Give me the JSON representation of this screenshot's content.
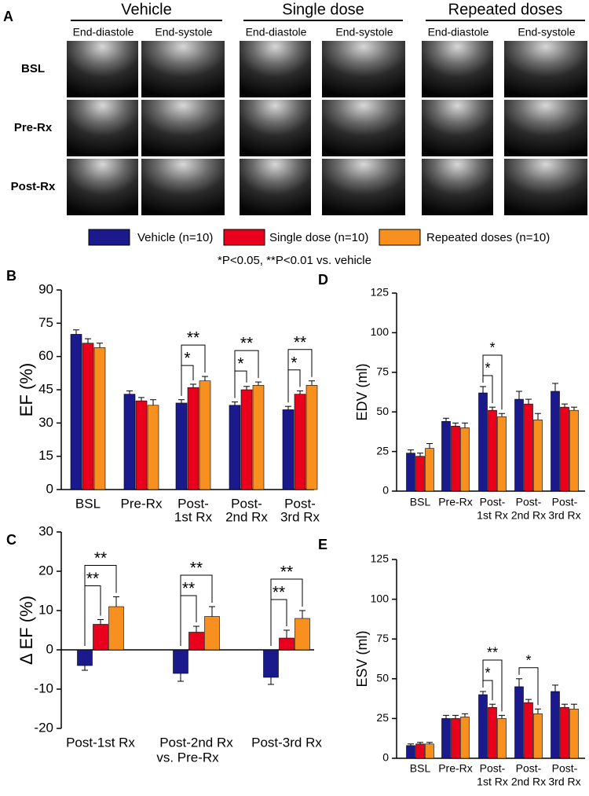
{
  "figure_a": {
    "panel": "A",
    "groups": [
      {
        "title": "Vehicle",
        "phases": [
          "End-diastole",
          "End-systole"
        ]
      },
      {
        "title": "Single dose",
        "phases": [
          "End-diastole",
          "End-systole"
        ]
      },
      {
        "title": "Repeated doses",
        "phases": [
          "End-diastole",
          "End-systole"
        ]
      }
    ],
    "rows": [
      "BSL",
      "Pre-Rx",
      "Post-Rx"
    ]
  },
  "significance_note": "*P<0.05, **P<0.01 vs. vehicle",
  "chart_data": [
    {
      "type": "bar",
      "panel": "B",
      "ylabel": "EF (%)",
      "categories": [
        [
          "BSL"
        ],
        [
          "Pre-Rx"
        ],
        [
          "Post-",
          "1st Rx"
        ],
        [
          "Post-",
          "2nd Rx"
        ],
        [
          "Post-",
          "3rd Rx"
        ]
      ],
      "series": [
        {
          "name": "Vehicle (n=10)",
          "color": "#1a1a8c",
          "values": [
            70,
            43,
            39,
            38,
            36
          ],
          "errors": [
            2,
            1.5,
            1.5,
            1.5,
            1.5
          ]
        },
        {
          "name": "Single dose (n=10)",
          "color": "#e8001c",
          "values": [
            66,
            40,
            46,
            45,
            43
          ],
          "errors": [
            2,
            1.5,
            1.5,
            1.5,
            1.5
          ]
        },
        {
          "name": "Repeated doses (n=10)",
          "color": "#f7901e",
          "values": [
            64,
            38,
            49,
            47,
            47
          ],
          "errors": [
            2,
            2.5,
            2,
            1.5,
            2
          ]
        }
      ],
      "ylim": [
        0,
        90
      ],
      "yticks": [
        0,
        15,
        30,
        45,
        60,
        75,
        90
      ],
      "grid": false,
      "annotations": [
        {
          "category": 2,
          "series": [
            0,
            1
          ],
          "label": "*"
        },
        {
          "category": 2,
          "series": [
            0,
            2
          ],
          "label": "**"
        },
        {
          "category": 3,
          "series": [
            0,
            1
          ],
          "label": "*"
        },
        {
          "category": 3,
          "series": [
            0,
            2
          ],
          "label": "**"
        },
        {
          "category": 4,
          "series": [
            0,
            1
          ],
          "label": "*"
        },
        {
          "category": 4,
          "series": [
            0,
            2
          ],
          "label": "**"
        }
      ]
    },
    {
      "type": "bar",
      "panel": "C",
      "ylabel": "Δ EF (%)",
      "xlabel": "vs. Pre-Rx",
      "categories": [
        [
          "Post-1st Rx"
        ],
        [
          "Post-2nd Rx"
        ],
        [
          "Post-3rd Rx"
        ]
      ],
      "series": [
        {
          "color": "#1a1a8c",
          "values": [
            -4,
            -6,
            -7
          ],
          "errors": [
            1.2,
            2,
            1.8
          ]
        },
        {
          "color": "#e8001c",
          "values": [
            6.5,
            4.5,
            3
          ],
          "errors": [
            1.2,
            1.5,
            2
          ]
        },
        {
          "color": "#f7901e",
          "values": [
            11,
            8.5,
            8
          ],
          "errors": [
            2.5,
            2.5,
            2
          ]
        }
      ],
      "ylim": [
        -20,
        30
      ],
      "yticks": [
        -20,
        -10,
        0,
        10,
        20,
        30
      ],
      "grid": false,
      "annotations": [
        {
          "category": 0,
          "series": [
            0,
            1
          ],
          "label": "**"
        },
        {
          "category": 0,
          "series": [
            0,
            2
          ],
          "label": "**"
        },
        {
          "category": 1,
          "series": [
            0,
            1
          ],
          "label": "**"
        },
        {
          "category": 1,
          "series": [
            0,
            2
          ],
          "label": "**"
        },
        {
          "category": 2,
          "series": [
            0,
            1
          ],
          "label": "**"
        },
        {
          "category": 2,
          "series": [
            0,
            2
          ],
          "label": "**"
        }
      ]
    },
    {
      "type": "bar",
      "panel": "D",
      "ylabel": "EDV (ml)",
      "categories": [
        [
          "BSL"
        ],
        [
          "Pre-Rx"
        ],
        [
          "Post-",
          "1st Rx"
        ],
        [
          "Post-",
          "2nd Rx"
        ],
        [
          "Post-",
          "3rd Rx"
        ]
      ],
      "series": [
        {
          "color": "#1a1a8c",
          "values": [
            24,
            44,
            62,
            58,
            63
          ],
          "errors": [
            2,
            2,
            4,
            5,
            5
          ]
        },
        {
          "color": "#e8001c",
          "values": [
            22,
            41,
            51,
            55,
            53
          ],
          "errors": [
            2,
            2,
            2,
            3,
            2
          ]
        },
        {
          "color": "#f7901e",
          "values": [
            27,
            40,
            47,
            45,
            51
          ],
          "errors": [
            3,
            3,
            2,
            4,
            2
          ]
        }
      ],
      "ylim": [
        0,
        125
      ],
      "yticks": [
        0,
        25,
        50,
        75,
        100,
        125
      ],
      "grid": false,
      "annotations": [
        {
          "category": 2,
          "series": [
            0,
            1
          ],
          "label": "*"
        },
        {
          "category": 2,
          "series": [
            0,
            2
          ],
          "label": "*"
        }
      ]
    },
    {
      "type": "bar",
      "panel": "E",
      "ylabel": "ESV (ml)",
      "categories": [
        [
          "BSL"
        ],
        [
          "Pre-Rx"
        ],
        [
          "Post-",
          "1st Rx"
        ],
        [
          "Post-",
          "2nd Rx"
        ],
        [
          "Post-",
          "3rd Rx"
        ]
      ],
      "series": [
        {
          "color": "#1a1a8c",
          "values": [
            8,
            25,
            40,
            45,
            42
          ],
          "errors": [
            1,
            2,
            2,
            5,
            4
          ]
        },
        {
          "color": "#e8001c",
          "values": [
            9,
            25,
            32,
            35,
            32
          ],
          "errors": [
            1,
            2,
            2,
            2,
            2
          ]
        },
        {
          "color": "#f7901e",
          "values": [
            9,
            26,
            25,
            28,
            31
          ],
          "errors": [
            1,
            2,
            2,
            3,
            3
          ]
        }
      ],
      "ylim": [
        0,
        125
      ],
      "yticks": [
        0,
        25,
        50,
        75,
        100,
        125
      ],
      "grid": false,
      "annotations": [
        {
          "category": 2,
          "series": [
            0,
            1
          ],
          "label": "*"
        },
        {
          "category": 2,
          "series": [
            0,
            2
          ],
          "label": "**"
        },
        {
          "category": 3,
          "series": [
            0,
            2
          ],
          "label": "*"
        }
      ]
    }
  ]
}
